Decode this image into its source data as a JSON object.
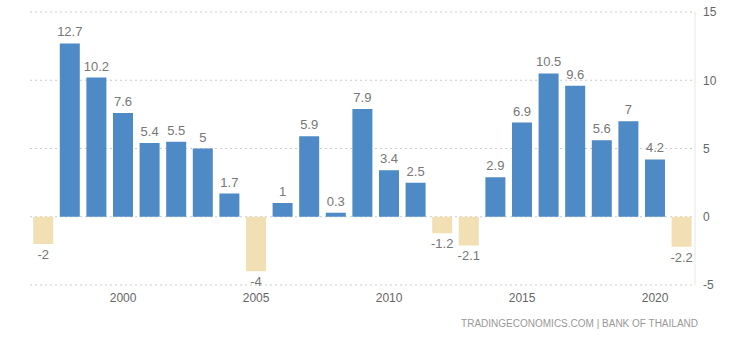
{
  "chart_data": {
    "type": "bar",
    "source": "TRADINGECONOMICS.COM | BANK OF THAILAND",
    "categories": [
      null,
      null,
      null,
      "2000",
      null,
      null,
      null,
      null,
      "2005",
      null,
      null,
      null,
      null,
      "2010",
      null,
      null,
      null,
      null,
      "2015",
      null,
      null,
      null,
      null,
      "2020",
      null
    ],
    "values": [
      -2,
      12.7,
      10.2,
      7.6,
      5.4,
      5.5,
      5,
      1.7,
      -4,
      1,
      5.9,
      0.3,
      7.9,
      3.4,
      2.5,
      -1.2,
      -2.1,
      2.9,
      6.9,
      10.5,
      9.6,
      5.6,
      7,
      4.2,
      -2.2
    ],
    "colors": [
      "#f2dfb4",
      "#4d8ac6",
      "#4d8ac6",
      "#4d8ac6",
      "#4d8ac6",
      "#4d8ac6",
      "#4d8ac6",
      "#4d8ac6",
      "#f2dfb4",
      "#4d8ac6",
      "#4d8ac6",
      "#4d8ac6",
      "#4d8ac6",
      "#4d8ac6",
      "#4d8ac6",
      "#f2dfb4",
      "#f2dfb4",
      "#4d8ac6",
      "#4d8ac6",
      "#4d8ac6",
      "#4d8ac6",
      "#4d8ac6",
      "#4d8ac6",
      "#4d8ac6",
      "#f2dfb4"
    ],
    "ylim": [
      -5,
      15
    ],
    "yticks": [
      -5,
      0,
      5,
      10,
      15
    ],
    "grid": true,
    "data_labels": true
  }
}
